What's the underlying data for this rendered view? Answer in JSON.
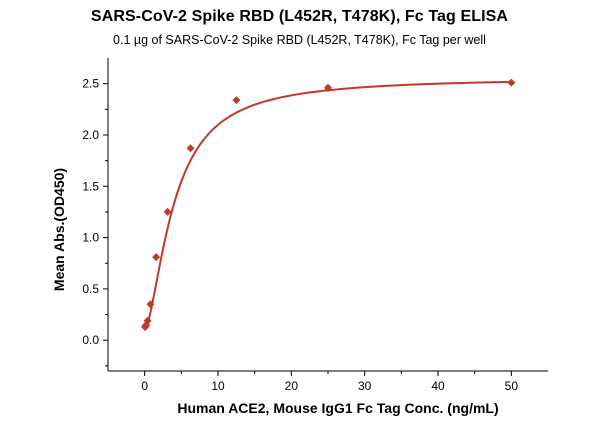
{
  "chart_data": {
    "type": "scatter",
    "title": "SARS-CoV-2 Spike RBD (L452R, T478K), Fc Tag ELISA",
    "subtitle": "0.1 µg of SARS-CoV-2 Spike RBD (L452R, T478K), Fc Tag per well",
    "xlabel": "Human ACE2, Mouse IgG1 Fc Tag Conc. (ng/mL)",
    "ylabel": "Mean Abs.(OD450)",
    "xlim": [
      -5,
      55
    ],
    "ylim": [
      -0.3,
      2.75
    ],
    "x_ticks": [
      0,
      10,
      20,
      30,
      40,
      50
    ],
    "y_ticks": [
      0.0,
      0.5,
      1.0,
      1.5,
      2.0,
      2.5
    ],
    "x_tick_labels": [
      "0",
      "10",
      "20",
      "30",
      "40",
      "50"
    ],
    "y_tick_labels": [
      "0.0",
      "0.5",
      "1.0",
      "1.5",
      "2.0",
      "2.5"
    ],
    "grid": false,
    "legend": "none",
    "series": [
      {
        "marker": "diamond",
        "color": "#c0392b",
        "x": [
          0.049,
          0.098,
          0.195,
          0.391,
          0.781,
          1.563,
          3.125,
          6.25,
          12.5,
          25,
          50
        ],
        "y": [
          0.13,
          0.13,
          0.15,
          0.19,
          0.35,
          0.81,
          1.25,
          1.87,
          2.34,
          2.46,
          2.51
        ]
      }
    ],
    "fit_curve": {
      "type": "four-parameter logistic",
      "color": "#c0392b"
    }
  }
}
